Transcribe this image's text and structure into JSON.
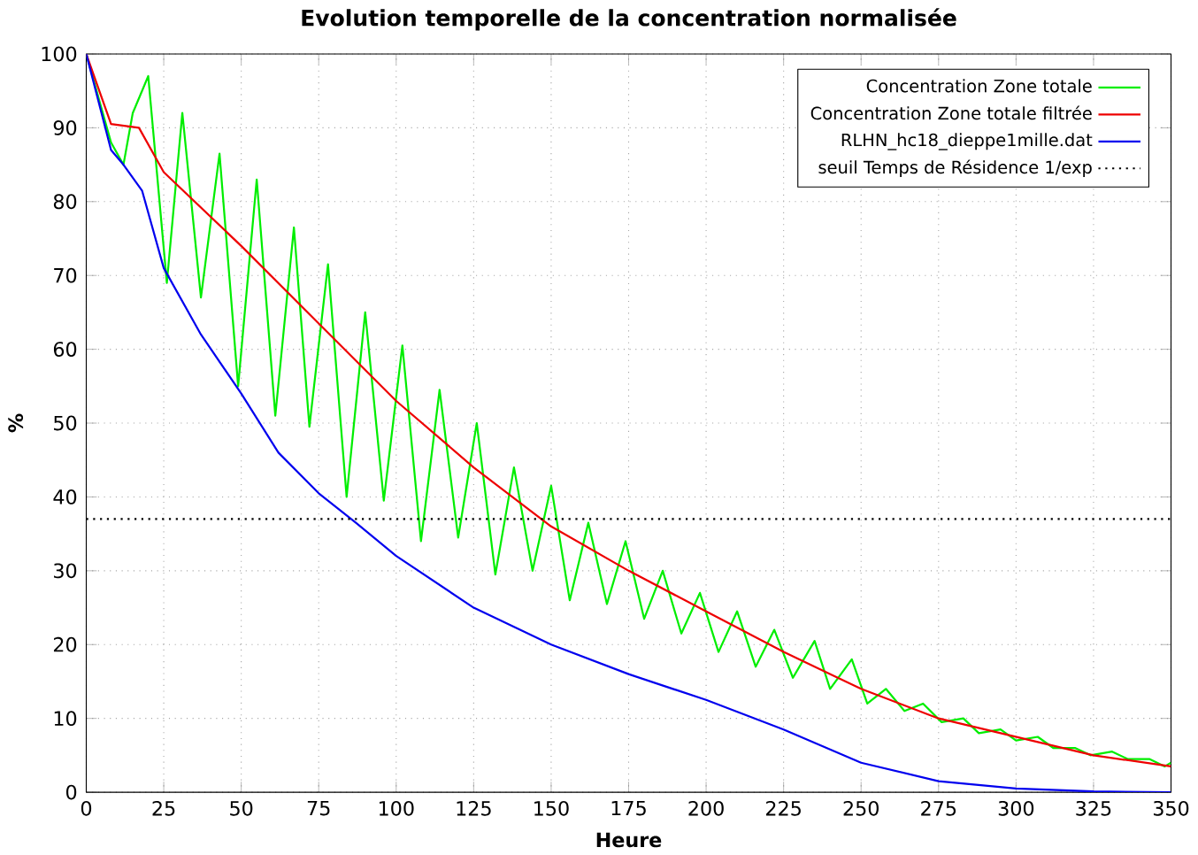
{
  "chart_data": {
    "type": "line",
    "title": "Evolution temporelle de la concentration normalisée",
    "xlabel": "Heure",
    "ylabel": "%",
    "xlim": [
      0,
      350
    ],
    "ylim": [
      0,
      100
    ],
    "xticks": [
      0,
      25,
      50,
      75,
      100,
      125,
      150,
      175,
      200,
      225,
      250,
      275,
      300,
      325,
      350
    ],
    "yticks": [
      0,
      10,
      20,
      30,
      40,
      50,
      60,
      70,
      80,
      90,
      100
    ],
    "grid": true,
    "legend": "top right",
    "line_style": "solid",
    "marker": "none",
    "series": [
      {
        "name": "Concentration Zone totale",
        "color": "#00ee00",
        "x": [
          0,
          8,
          12,
          15,
          20,
          26,
          31,
          37,
          43,
          49,
          55,
          61,
          67,
          72,
          78,
          84,
          90,
          96,
          102,
          108,
          114,
          120,
          126,
          132,
          138,
          144,
          150,
          156,
          162,
          168,
          174,
          180,
          186,
          192,
          198,
          204,
          210,
          216,
          222,
          228,
          235,
          240,
          247,
          252,
          258,
          264,
          270,
          276,
          283,
          288,
          295,
          300,
          307,
          312,
          319,
          324,
          331,
          336,
          343,
          348,
          350
        ],
        "values": [
          100,
          88,
          85,
          92,
          97,
          69,
          92,
          67,
          86.5,
          55,
          83,
          51,
          76.5,
          49.5,
          71.5,
          40,
          65,
          39.5,
          60.5,
          34,
          54.5,
          34.5,
          50,
          29.5,
          44,
          30,
          41.5,
          26,
          36.5,
          25.5,
          34,
          23.5,
          30,
          21.5,
          27,
          19,
          24.5,
          17,
          22,
          15.5,
          20.5,
          14,
          18,
          12,
          14,
          11,
          12,
          9.5,
          10,
          8,
          8.5,
          7,
          7.5,
          6,
          6,
          5,
          5.5,
          4.5,
          4.5,
          3.5,
          4
        ]
      },
      {
        "name": "Concentration Zone totale filtrée",
        "color": "#ee0000",
        "x": [
          0,
          8,
          17,
          25,
          50,
          75,
          100,
          125,
          150,
          175,
          200,
          225,
          250,
          275,
          300,
          325,
          350
        ],
        "values": [
          100,
          90.5,
          90,
          84,
          74,
          63.5,
          53,
          44,
          36,
          30,
          24.5,
          19,
          14,
          10,
          7.5,
          5,
          3.5
        ]
      },
      {
        "name": "RLHN_hc18_dieppe1mille.dat",
        "color": "#0000ee",
        "x": [
          0,
          8,
          12,
          18,
          25,
          37,
          50,
          62,
          75,
          87,
          100,
          125,
          150,
          175,
          200,
          225,
          250,
          275,
          300,
          325,
          350
        ],
        "values": [
          100,
          87,
          85,
          81.5,
          71,
          62,
          54,
          46,
          40.5,
          36.5,
          32,
          25,
          20,
          16,
          12.5,
          8.5,
          4,
          1.5,
          0.5,
          0.1,
          0
        ]
      }
    ],
    "ref_lines": [
      {
        "axis": "y",
        "value": 37,
        "label": "seuil Temps de Résidence 1/exp",
        "color": "#000000",
        "line_style": "dotted"
      }
    ]
  }
}
